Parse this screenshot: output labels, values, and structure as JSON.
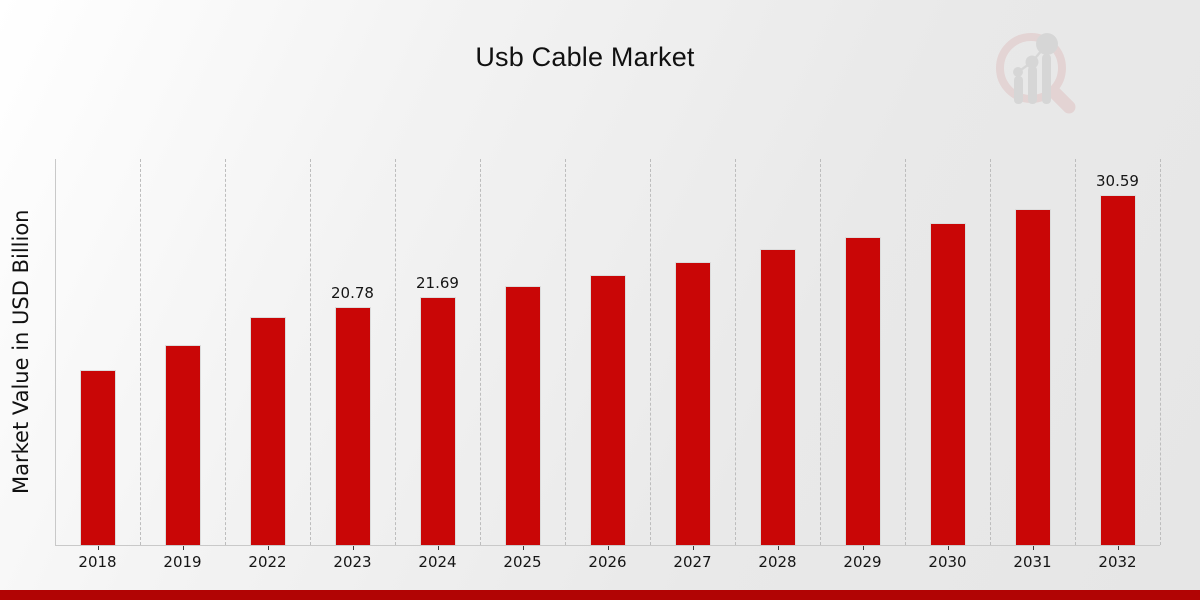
{
  "title": "Usb Cable Market",
  "y_axis_title": "Market Value in USD Billion",
  "colors": {
    "bar": "#c90606",
    "bar_edge": "#dcdcdc",
    "footer_strip": "#b10404",
    "grid": "#bdbdbd",
    "axis": "#c9c9c9",
    "text": "#151515",
    "logo_ring": "#dfc3c3",
    "logo_bars": "#c9c9c9"
  },
  "watermark": {
    "icon": "magnifier-bar-chart-logo"
  },
  "chart_data": {
    "type": "bar",
    "title": "Usb Cable Market",
    "xlabel": "",
    "ylabel": "Market Value in USD Billion",
    "categories": [
      "2018",
      "2019",
      "2022",
      "2023",
      "2024",
      "2025",
      "2026",
      "2027",
      "2028",
      "2029",
      "2030",
      "2031",
      "2032"
    ],
    "values": [
      15.3,
      17.5,
      19.9,
      20.78,
      21.69,
      22.6,
      23.6,
      24.7,
      25.8,
      26.9,
      28.1,
      29.3,
      30.59
    ],
    "bar_labels": [
      "",
      "",
      "",
      "20.78",
      "21.69",
      "",
      "",
      "",
      "",
      "",
      "",
      "",
      "30.59"
    ],
    "ylim": [
      0,
      33.7
    ],
    "y_ticks_visible": false,
    "grid": "vertical-dashed",
    "legend": "none",
    "bar_color": "#c90606"
  }
}
